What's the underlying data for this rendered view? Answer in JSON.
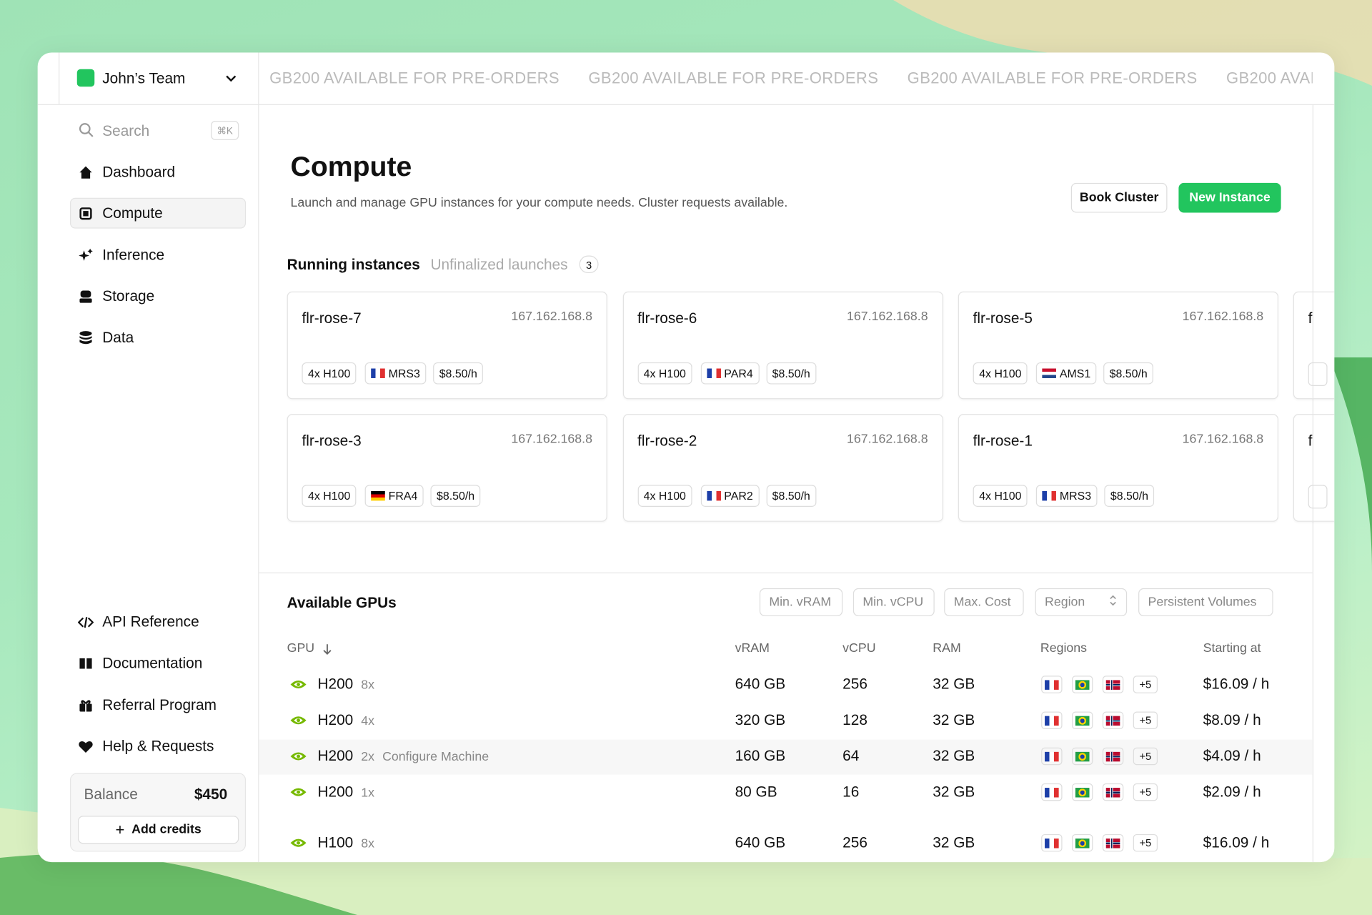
{
  "sidebar": {
    "team": "John’s Team",
    "search": "Search",
    "shortcut": "⌘K",
    "nav": [
      "Dashboard",
      "Compute",
      "Inference",
      "Storage",
      "Data"
    ],
    "bottom_nav": [
      "API Reference",
      "Documentation",
      "Referral Program",
      "Help & Requests"
    ],
    "balance_label": "Balance",
    "balance": "$450",
    "add_credits": "Add credits"
  },
  "banner": "GB200 AVAILABLE FOR PRE-ORDERS",
  "header": {
    "title": "Compute",
    "subtitle": "Launch and manage GPU instances for your compute needs. Cluster requests available.",
    "buttons": [
      "Book Cluster",
      "New Instance"
    ]
  },
  "tabs": {
    "active": "Running instances",
    "inactive": "Unfinalized launches",
    "count": 3
  },
  "instances": [
    {
      "name": "flr-rose-7",
      "ip": "167.162.168.8",
      "gpu": "4x H100",
      "region": "MRS3",
      "price": "$8.50/h"
    },
    {
      "name": "flr-rose-6",
      "ip": "167.162.168.8",
      "gpu": "4x H100",
      "region": "PAR4",
      "price": "$8.50/h"
    },
    {
      "name": "flr-rose-5",
      "ip": "167.162.168.8",
      "gpu": "4x H100",
      "region": "AMS1",
      "price": "$8.50/h"
    },
    {
      "name": "flr-rose-3",
      "ip": "167.162.168.8",
      "gpu": "4x H100",
      "region": "FRA4",
      "price": "$8.50/h"
    },
    {
      "name": "flr-rose-2",
      "ip": "167.162.168.8",
      "gpu": "4x H100",
      "region": "PAR2",
      "price": "$8.50/h"
    },
    {
      "name": "flr-rose-1",
      "ip": "167.162.168.8",
      "gpu": "4x H100",
      "region": "MRS3",
      "price": "$8.50/h"
    }
  ],
  "partial_cards": [
    "f",
    "f"
  ],
  "gpus": {
    "title": "Available GPUs",
    "filters": [
      "Min. vRAM",
      "Min. vCPU",
      "Max. Cost",
      "Region",
      "Persistent Volumes"
    ],
    "columns": [
      "GPU",
      "vRAM",
      "vCPU",
      "RAM",
      "Regions",
      "Starting at"
    ],
    "rows": [
      {
        "gpu": "H200",
        "count": "8x",
        "vram": "640 GB",
        "vcpu": 256,
        "ram": "32 GB",
        "more": "+5",
        "price": "$16.09 / h"
      },
      {
        "gpu": "H200",
        "count": "4x",
        "vram": "320 GB",
        "vcpu": 128,
        "ram": "32 GB",
        "more": "+5",
        "price": "$8.09 / h"
      },
      {
        "gpu": "H200",
        "count": "2x",
        "action": "Configure Machine",
        "vram": "160 GB",
        "vcpu": 64,
        "ram": "32 GB",
        "more": "+5",
        "price": "$4.09 / h"
      },
      {
        "gpu": "H200",
        "count": "1x",
        "vram": "80 GB",
        "vcpu": 16,
        "ram": "32 GB",
        "more": "+5",
        "price": "$2.09 / h"
      },
      {
        "gpu": "H100",
        "count": "8x",
        "vram": "640 GB",
        "vcpu": 256,
        "ram": "32 GB",
        "more": "+5",
        "price": "$16.09 / h"
      }
    ]
  }
}
